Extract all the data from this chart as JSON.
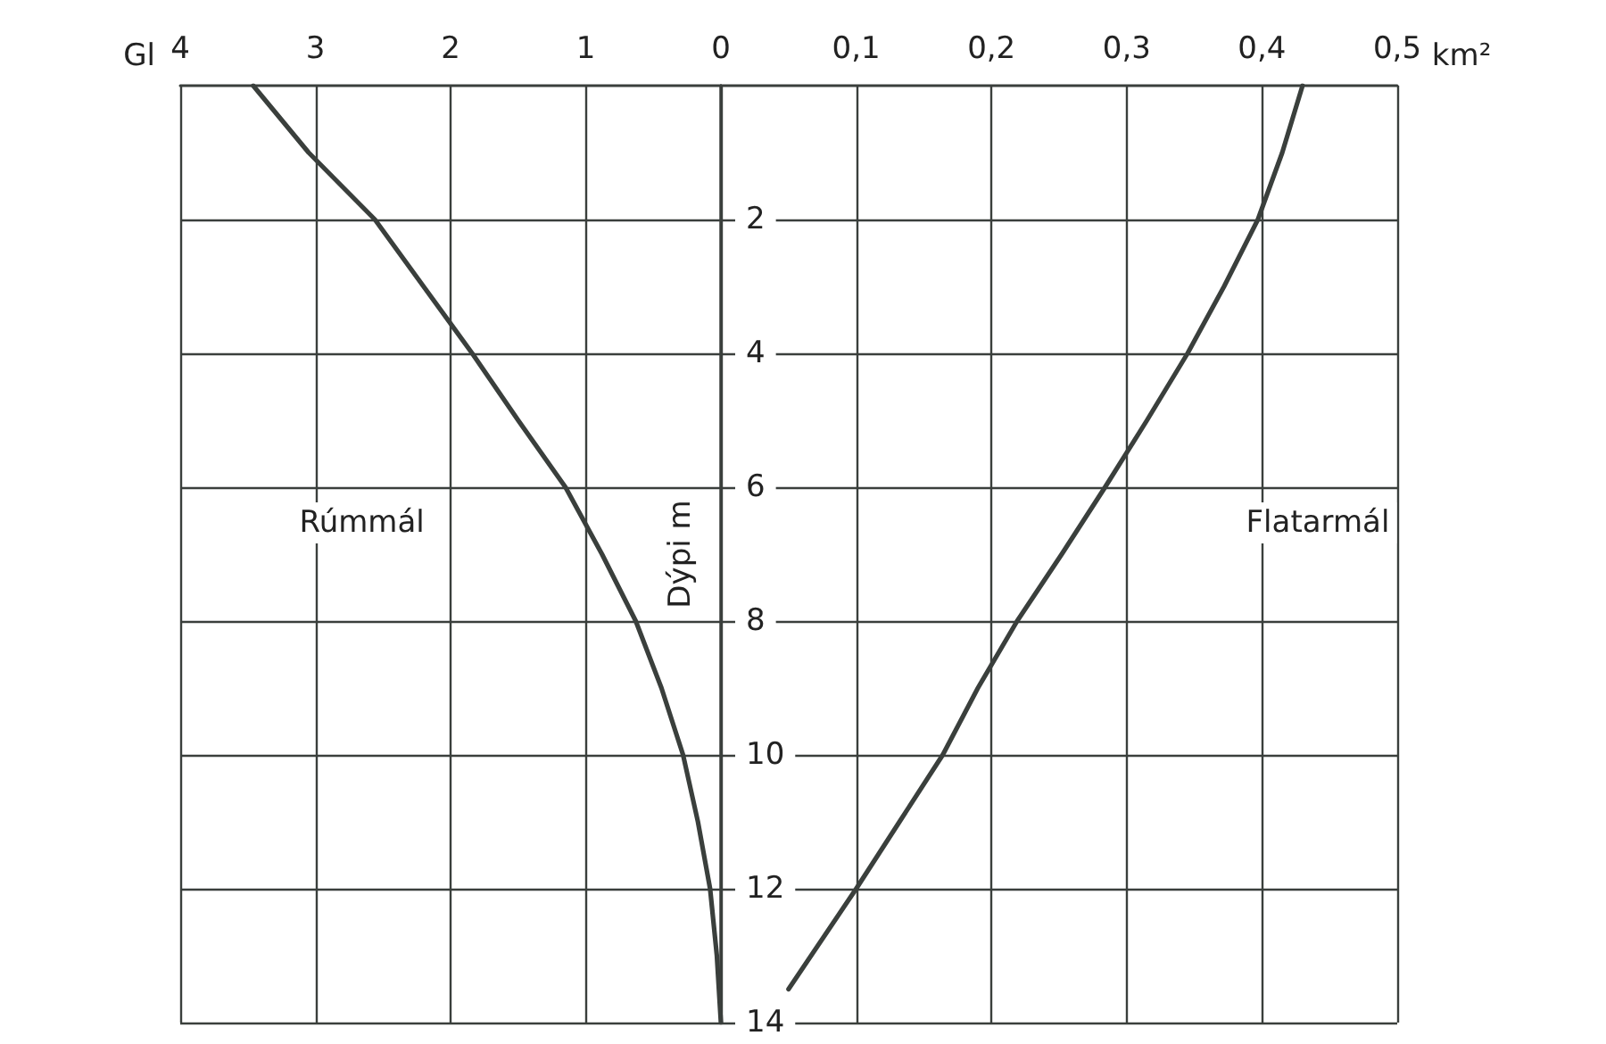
{
  "chart_data": [
    {
      "type": "line",
      "xlabel": "Gl",
      "xlim": [
        4,
        0
      ],
      "xticks": [
        4,
        3,
        2,
        1,
        0
      ],
      "ylim": [
        14,
        0
      ],
      "yticks": [
        2,
        4,
        6,
        8,
        10,
        12,
        14
      ],
      "tick_labels": "x",
      "grid": true,
      "legend": false,
      "marker": "none",
      "line_style": "solid",
      "series": [
        {
          "name": "Rúmmál",
          "color": "#3a3f3c",
          "x": [
            3.46,
            3.05,
            2.56,
            2.2,
            1.84,
            1.5,
            1.15,
            0.88,
            0.63,
            0.44,
            0.28,
            0.17,
            0.08,
            0.03,
            0
          ],
          "values": [
            0,
            1,
            2,
            3,
            4,
            5,
            6,
            7,
            8,
            9,
            10,
            11,
            12,
            13,
            14
          ]
        }
      ]
    },
    {
      "type": "line",
      "xlabel": "km²",
      "ylabel": "Dýpi m",
      "xlim": [
        0,
        0.5
      ],
      "xticks": [
        {
          "value": 0.1,
          "label": "0,1"
        },
        {
          "value": 0.2,
          "label": "0,2"
        },
        {
          "value": 0.3,
          "label": "0,3"
        },
        {
          "value": 0.4,
          "label": "0,4"
        },
        {
          "value": 0.5,
          "label": "0,5"
        }
      ],
      "ylim": [
        14,
        0
      ],
      "yticks": [
        2,
        4,
        6,
        8,
        10,
        12,
        14
      ],
      "tick_labels": "xy",
      "grid": true,
      "legend": false,
      "marker": "none",
      "line_style": "solid",
      "series": [
        {
          "name": "Flatarmál",
          "color": "#3a3f3c",
          "x": [
            0.43,
            0.415,
            0.397,
            0.372,
            0.345,
            0.315,
            0.284,
            0.252,
            0.219,
            0.19,
            0.164,
            0.132,
            0.1,
            0.05
          ],
          "values": [
            0,
            1,
            2,
            3,
            4,
            5,
            6,
            7,
            8,
            9,
            10,
            11,
            12,
            13.5
          ]
        }
      ]
    }
  ]
}
